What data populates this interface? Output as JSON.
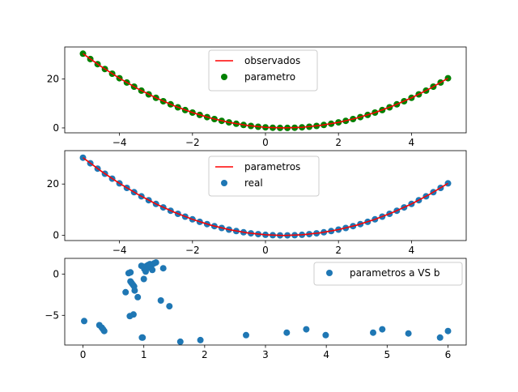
{
  "chart_data": [
    {
      "type": "line+scatter",
      "xlim": [
        -5.5,
        5.5
      ],
      "ylim": [
        -2,
        33
      ],
      "xticks": [
        -4,
        -2,
        0,
        2,
        4
      ],
      "yticks": [
        0,
        20
      ],
      "legend": {
        "placement": "upper center",
        "labels": [
          "observados",
          "parametro"
        ]
      },
      "series": [
        {
          "name": "observados",
          "kind": "line",
          "color": "#ff0000",
          "x": [
            -5.0,
            -4.5,
            -4.0,
            -3.5,
            -3.0,
            -2.5,
            -2.0,
            -1.5,
            -1.0,
            -0.5,
            0.0,
            0.5,
            1.0,
            1.5,
            2.0,
            2.5,
            3.0,
            3.5,
            4.0,
            4.5,
            5.0
          ],
          "y": [
            30.25,
            25.0,
            20.25,
            16.0,
            12.25,
            9.0,
            6.25,
            4.0,
            2.25,
            1.0,
            0.25,
            0.0,
            0.25,
            1.0,
            2.25,
            4.0,
            6.25,
            9.0,
            12.25,
            16.0,
            20.25
          ]
        },
        {
          "name": "parametro",
          "kind": "scatter",
          "color": "#008000",
          "x": [
            -5.0,
            -4.8,
            -4.6,
            -4.4,
            -4.2,
            -4.0,
            -3.8,
            -3.6,
            -3.4,
            -3.2,
            -3.0,
            -2.8,
            -2.6,
            -2.4,
            -2.2,
            -2.0,
            -1.8,
            -1.6,
            -1.4,
            -1.2,
            -1.0,
            -0.8,
            -0.6,
            -0.4,
            -0.2,
            0.0,
            0.2,
            0.4,
            0.6,
            0.8,
            1.0,
            1.2,
            1.4,
            1.6,
            1.8,
            2.0,
            2.2,
            2.4,
            2.6,
            2.8,
            3.0,
            3.2,
            3.4,
            3.6,
            3.8,
            4.0,
            4.2,
            4.4,
            4.6,
            4.8,
            5.0
          ],
          "y": [
            30.25,
            28.09,
            26.01,
            24.01,
            22.09,
            20.25,
            18.49,
            16.81,
            15.21,
            13.69,
            12.25,
            10.89,
            9.61,
            8.41,
            7.29,
            6.25,
            5.29,
            4.41,
            3.61,
            2.89,
            2.25,
            1.69,
            1.21,
            0.81,
            0.49,
            0.25,
            0.09,
            0.01,
            0.01,
            0.09,
            0.25,
            0.49,
            0.81,
            1.21,
            1.69,
            2.25,
            2.89,
            3.61,
            4.41,
            5.29,
            6.25,
            7.29,
            8.41,
            9.61,
            10.89,
            12.25,
            13.69,
            15.21,
            16.81,
            18.49,
            20.25
          ]
        }
      ]
    },
    {
      "type": "line+scatter",
      "xlim": [
        -5.5,
        5.5
      ],
      "ylim": [
        -2,
        33
      ],
      "xticks": [
        -4,
        -2,
        0,
        2,
        4
      ],
      "yticks": [
        0,
        20
      ],
      "legend": {
        "placement": "upper center",
        "labels": [
          "parametros",
          "real"
        ]
      },
      "series": [
        {
          "name": "parametros",
          "kind": "line",
          "color": "#ff0000",
          "x": [
            -5.0,
            -4.5,
            -4.0,
            -3.5,
            -3.0,
            -2.5,
            -2.0,
            -1.5,
            -1.0,
            -0.5,
            0.0,
            0.5,
            1.0,
            1.5,
            2.0,
            2.5,
            3.0,
            3.5,
            4.0,
            4.5,
            5.0
          ],
          "y": [
            30.25,
            25.0,
            20.25,
            16.0,
            12.25,
            9.0,
            6.25,
            4.0,
            2.25,
            1.0,
            0.25,
            0.0,
            0.25,
            1.0,
            2.25,
            4.0,
            6.25,
            9.0,
            12.25,
            16.0,
            20.25
          ]
        },
        {
          "name": "real",
          "kind": "scatter",
          "color": "#1f77b4",
          "x": [
            -5.0,
            -4.8,
            -4.6,
            -4.4,
            -4.2,
            -4.0,
            -3.8,
            -3.6,
            -3.4,
            -3.2,
            -3.0,
            -2.8,
            -2.6,
            -2.4,
            -2.2,
            -2.0,
            -1.8,
            -1.6,
            -1.4,
            -1.2,
            -1.0,
            -0.8,
            -0.6,
            -0.4,
            -0.2,
            0.0,
            0.2,
            0.4,
            0.6,
            0.8,
            1.0,
            1.2,
            1.4,
            1.6,
            1.8,
            2.0,
            2.2,
            2.4,
            2.6,
            2.8,
            3.0,
            3.2,
            3.4,
            3.6,
            3.8,
            4.0,
            4.2,
            4.4,
            4.6,
            4.8,
            5.0
          ],
          "y": [
            30.25,
            28.09,
            26.01,
            24.01,
            22.09,
            20.25,
            18.49,
            16.81,
            15.21,
            13.69,
            12.25,
            10.89,
            9.61,
            8.41,
            7.29,
            6.25,
            5.29,
            4.41,
            3.61,
            2.89,
            2.25,
            1.69,
            1.21,
            0.81,
            0.49,
            0.25,
            0.09,
            0.01,
            0.01,
            0.09,
            0.25,
            0.49,
            0.81,
            1.21,
            1.69,
            2.25,
            2.89,
            3.61,
            4.41,
            5.29,
            6.25,
            7.29,
            8.41,
            9.61,
            10.89,
            12.25,
            13.69,
            15.21,
            16.81,
            18.49,
            20.25
          ]
        }
      ]
    },
    {
      "type": "scatter",
      "xlim": [
        -0.3,
        6.3
      ],
      "ylim": [
        -8.6,
        1.9
      ],
      "xticks": [
        0,
        1,
        2,
        3,
        4,
        5,
        6
      ],
      "yticks": [
        -5,
        0
      ],
      "legend": {
        "placement": "upper right",
        "labels": [
          "parametros a VS b"
        ]
      },
      "series": [
        {
          "name": "parametros a VS b",
          "kind": "scatter",
          "color": "#1f77b4",
          "x": [
            0.02,
            0.27,
            0.31,
            0.35,
            0.33,
            0.7,
            0.75,
            0.77,
            0.78,
            0.78,
            0.8,
            0.82,
            0.83,
            0.84,
            0.85,
            0.9,
            0.96,
            0.97,
            0.98,
            0.99,
            1.0,
            1.01,
            1.03,
            1.05,
            1.07,
            1.08,
            1.1,
            1.12,
            1.14,
            1.17,
            1.2,
            1.28,
            1.32,
            1.42,
            1.6,
            1.93,
            2.68,
            3.35,
            3.67,
            3.99,
            4.77,
            4.92,
            5.35,
            5.87,
            6.0
          ],
          "y": [
            -5.7,
            -6.2,
            -6.5,
            -6.9,
            -6.7,
            -2.2,
            0.1,
            -5.1,
            0.2,
            -0.9,
            -1.1,
            -1.3,
            -4.9,
            -1.5,
            -2.0,
            -2.8,
            1.0,
            -7.7,
            -7.7,
            0.9,
            -0.6,
            0.6,
            0.3,
            1.0,
            1.1,
            0.8,
            1.2,
            0.9,
            0.5,
            1.3,
            1.4,
            -3.2,
            0.7,
            -3.9,
            -8.2,
            -8.0,
            -7.4,
            -7.1,
            -6.7,
            -7.4,
            -7.1,
            -6.7,
            -7.2,
            -7.7,
            -6.9
          ]
        }
      ]
    }
  ]
}
